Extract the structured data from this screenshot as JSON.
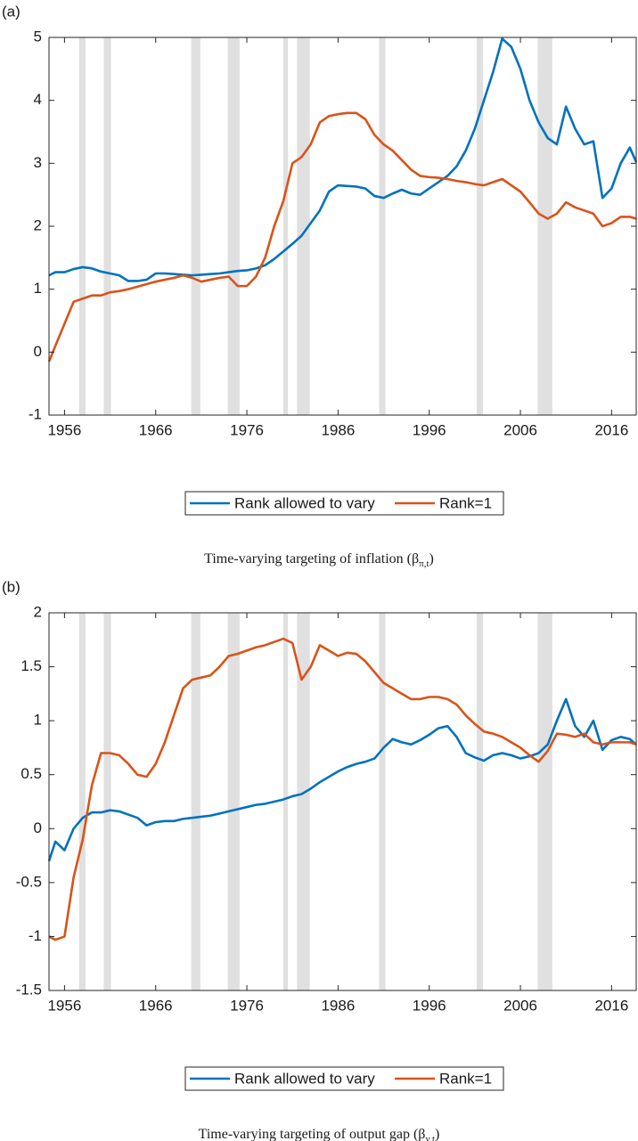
{
  "chart_data": [
    {
      "type": "line",
      "panel_label": "(a)",
      "caption": "Time-varying targeting of inflation (β",
      "caption_subscript": "π,t",
      "caption_close": ")",
      "x": [
        1954.3,
        1955,
        1956,
        1957,
        1958,
        1959,
        1960,
        1961,
        1962,
        1963,
        1964,
        1965,
        1966,
        1967,
        1968,
        1969,
        1970,
        1971,
        1972,
        1973,
        1974,
        1975,
        1976,
        1977,
        1978,
        1979,
        1980,
        1981,
        1982,
        1983,
        1984,
        1985,
        1986,
        1987,
        1988,
        1989,
        1990,
        1991,
        1992,
        1993,
        1994,
        1995,
        1996,
        1997,
        1998,
        1999,
        2000,
        2001,
        2002,
        2003,
        2004,
        2005,
        2006,
        2007,
        2008,
        2009,
        2010,
        2011,
        2012,
        2013,
        2014,
        2015,
        2016,
        2017,
        2018,
        2018.7
      ],
      "series": [
        {
          "name": "Rank allowed to vary",
          "color": "#0072bd",
          "values": [
            1.22,
            1.27,
            1.27,
            1.32,
            1.35,
            1.33,
            1.28,
            1.25,
            1.22,
            1.13,
            1.13,
            1.15,
            1.25,
            1.25,
            1.24,
            1.23,
            1.22,
            1.23,
            1.24,
            1.25,
            1.27,
            1.29,
            1.3,
            1.33,
            1.38,
            1.48,
            1.6,
            1.72,
            1.85,
            2.05,
            2.25,
            2.55,
            2.65,
            2.64,
            2.63,
            2.6,
            2.48,
            2.45,
            2.52,
            2.58,
            2.52,
            2.5,
            2.6,
            2.7,
            2.8,
            2.95,
            3.2,
            3.55,
            4.0,
            4.45,
            4.98,
            4.85,
            4.5,
            4.0,
            3.65,
            3.4,
            3.3,
            3.9,
            3.55,
            3.3,
            3.35,
            2.45,
            2.6,
            3.0,
            3.25,
            3.02
          ]
        },
        {
          "name": "Rank=1",
          "color": "#d95319",
          "values": [
            -0.15,
            0.1,
            0.45,
            0.8,
            0.85,
            0.9,
            0.9,
            0.95,
            0.97,
            1.0,
            1.04,
            1.08,
            1.12,
            1.15,
            1.18,
            1.22,
            1.18,
            1.12,
            1.15,
            1.18,
            1.2,
            1.05,
            1.05,
            1.2,
            1.5,
            2.0,
            2.4,
            3.0,
            3.1,
            3.3,
            3.65,
            3.75,
            3.78,
            3.8,
            3.8,
            3.7,
            3.45,
            3.3,
            3.2,
            3.05,
            2.9,
            2.8,
            2.78,
            2.77,
            2.75,
            2.72,
            2.7,
            2.67,
            2.65,
            2.7,
            2.75,
            2.65,
            2.55,
            2.38,
            2.2,
            2.12,
            2.2,
            2.38,
            2.3,
            2.25,
            2.2,
            2.0,
            2.05,
            2.15,
            2.15,
            2.12
          ]
        }
      ],
      "xlim": [
        1954.3,
        2018.7
      ],
      "xticks": [
        1956,
        1966,
        1976,
        1986,
        1996,
        2006,
        2016
      ],
      "ylim": [
        -1,
        5
      ],
      "yticks": [
        -1,
        0,
        1,
        2,
        3,
        4,
        5
      ],
      "shaded_periods": [
        [
          1957.6,
          1958.3
        ],
        [
          1960.3,
          1961.1
        ],
        [
          1969.9,
          1970.9
        ],
        [
          1973.9,
          1975.2
        ],
        [
          1980.0,
          1980.5
        ],
        [
          1981.5,
          1982.9
        ],
        [
          1990.5,
          1991.2
        ],
        [
          2001.2,
          2001.9
        ],
        [
          2007.9,
          2009.5
        ]
      ],
      "shade_color": "#e0e0e0",
      "legend": "bottom"
    },
    {
      "type": "line",
      "panel_label": "(b)",
      "caption": "Time-varying targeting of output gap (β",
      "caption_subscript": "y,t",
      "caption_close": ")",
      "x": [
        1954.3,
        1955,
        1956,
        1957,
        1958,
        1959,
        1960,
        1961,
        1962,
        1963,
        1964,
        1965,
        1966,
        1967,
        1968,
        1969,
        1970,
        1971,
        1972,
        1973,
        1974,
        1975,
        1976,
        1977,
        1978,
        1979,
        1980,
        1981,
        1982,
        1983,
        1984,
        1985,
        1986,
        1987,
        1988,
        1989,
        1990,
        1991,
        1992,
        1993,
        1994,
        1995,
        1996,
        1997,
        1998,
        1999,
        2000,
        2001,
        2002,
        2003,
        2004,
        2005,
        2006,
        2007,
        2008,
        2009,
        2010,
        2011,
        2012,
        2013,
        2014,
        2015,
        2016,
        2017,
        2018,
        2018.7
      ],
      "series": [
        {
          "name": "Rank allowed to vary",
          "color": "#0072bd",
          "values": [
            -0.3,
            -0.12,
            -0.2,
            0.0,
            0.1,
            0.15,
            0.15,
            0.17,
            0.16,
            0.13,
            0.1,
            0.03,
            0.06,
            0.07,
            0.07,
            0.09,
            0.1,
            0.11,
            0.12,
            0.14,
            0.16,
            0.18,
            0.2,
            0.22,
            0.23,
            0.25,
            0.27,
            0.3,
            0.32,
            0.37,
            0.43,
            0.48,
            0.53,
            0.57,
            0.6,
            0.62,
            0.65,
            0.75,
            0.83,
            0.8,
            0.78,
            0.82,
            0.87,
            0.93,
            0.95,
            0.85,
            0.7,
            0.66,
            0.63,
            0.68,
            0.7,
            0.68,
            0.65,
            0.67,
            0.7,
            0.78,
            1.0,
            1.2,
            0.95,
            0.85,
            1.0,
            0.73,
            0.82,
            0.85,
            0.83,
            0.78
          ]
        },
        {
          "name": "Rank=1",
          "color": "#d95319",
          "values": [
            -1.0,
            -1.03,
            -1.0,
            -0.45,
            -0.1,
            0.4,
            0.7,
            0.7,
            0.68,
            0.6,
            0.5,
            0.48,
            0.6,
            0.8,
            1.05,
            1.3,
            1.38,
            1.4,
            1.42,
            1.5,
            1.6,
            1.62,
            1.65,
            1.68,
            1.7,
            1.73,
            1.76,
            1.72,
            1.38,
            1.5,
            1.7,
            1.65,
            1.6,
            1.63,
            1.62,
            1.55,
            1.45,
            1.35,
            1.3,
            1.25,
            1.2,
            1.2,
            1.22,
            1.22,
            1.2,
            1.15,
            1.05,
            0.97,
            0.9,
            0.88,
            0.85,
            0.8,
            0.75,
            0.68,
            0.62,
            0.72,
            0.88,
            0.87,
            0.85,
            0.88,
            0.8,
            0.78,
            0.8,
            0.8,
            0.8,
            0.78
          ]
        }
      ],
      "xlim": [
        1954.3,
        2018.7
      ],
      "xticks": [
        1956,
        1966,
        1976,
        1986,
        1996,
        2006,
        2016
      ],
      "ylim": [
        -1.5,
        2
      ],
      "yticks": [
        -1.5,
        -1,
        -0.5,
        0,
        0.5,
        1,
        1.5,
        2
      ],
      "shaded_periods": [
        [
          1957.6,
          1958.3
        ],
        [
          1960.3,
          1961.1
        ],
        [
          1969.9,
          1970.9
        ],
        [
          1973.9,
          1975.2
        ],
        [
          1980.0,
          1980.5
        ],
        [
          1981.5,
          1982.9
        ],
        [
          1990.5,
          1991.2
        ],
        [
          2001.2,
          2001.9
        ],
        [
          2007.9,
          2009.5
        ]
      ],
      "shade_color": "#e0e0e0",
      "legend": "bottom"
    }
  ]
}
